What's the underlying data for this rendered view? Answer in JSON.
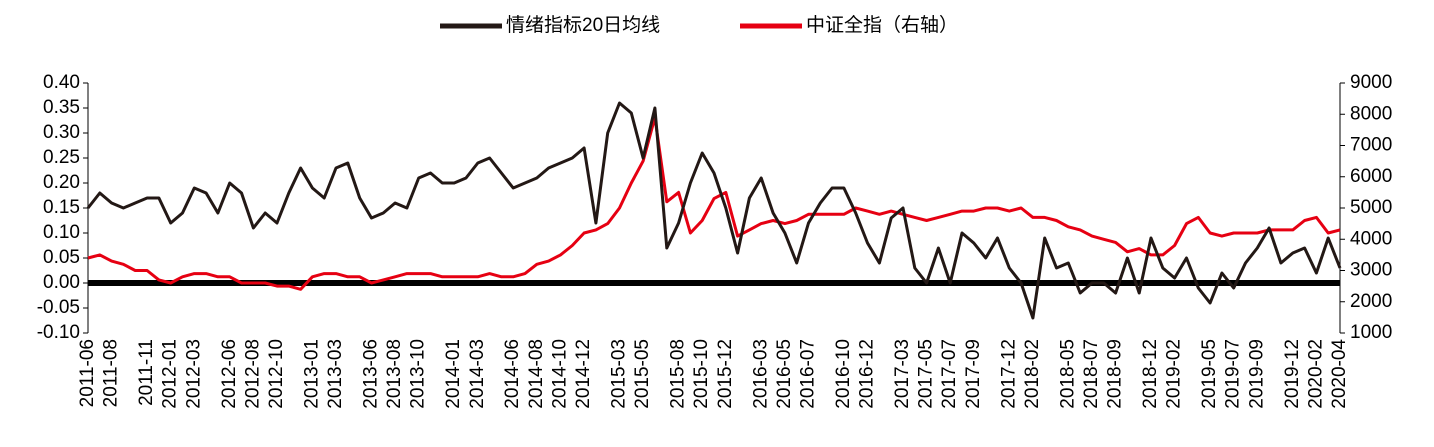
{
  "chart_data": {
    "type": "line",
    "categories": [
      "2011-06",
      null,
      "2011-08",
      null,
      null,
      "2011-11",
      null,
      "2012-01",
      null,
      "2012-03",
      null,
      null,
      "2012-06",
      null,
      "2012-08",
      null,
      "2012-10",
      null,
      null,
      "2013-01",
      null,
      "2013-03",
      null,
      null,
      "2013-06",
      null,
      "2013-08",
      null,
      "2013-10",
      null,
      null,
      "2014-01",
      null,
      "2014-03",
      null,
      null,
      "2014-06",
      null,
      "2014-08",
      null,
      "2014-10",
      null,
      "2014-12",
      null,
      null,
      "2015-03",
      null,
      "2015-05",
      null,
      null,
      "2015-08",
      null,
      "2015-10",
      null,
      "2015-12",
      null,
      null,
      "2016-03",
      null,
      "2016-05",
      null,
      "2016-07",
      null,
      null,
      "2016-10",
      null,
      "2016-12",
      null,
      null,
      "2017-03",
      null,
      "2017-05",
      null,
      "2017-07",
      null,
      "2017-09",
      null,
      null,
      "2017-12",
      null,
      "2018-02",
      null,
      null,
      "2018-05",
      null,
      "2018-07",
      null,
      "2018-09",
      null,
      null,
      "2018-12",
      null,
      "2019-02",
      null,
      null,
      "2019-05",
      null,
      "2019-07",
      null,
      "2019-09",
      null,
      null,
      "2019-12",
      null,
      "2020-02",
      null,
      "2020-04"
    ],
    "series": [
      {
        "name": "情绪指标20日均线",
        "color": "#231815",
        "values": [
          0.15,
          0.18,
          0.16,
          0.15,
          0.16,
          0.17,
          0.17,
          0.12,
          0.14,
          0.19,
          0.18,
          0.14,
          0.2,
          0.18,
          0.11,
          0.14,
          0.12,
          0.18,
          0.23,
          0.19,
          0.17,
          0.23,
          0.24,
          0.17,
          0.13,
          0.14,
          0.16,
          0.15,
          0.21,
          0.22,
          0.2,
          0.2,
          0.21,
          0.24,
          0.25,
          0.22,
          0.19,
          0.2,
          0.21,
          0.23,
          0.24,
          0.25,
          0.27,
          0.12,
          0.3,
          0.36,
          0.34,
          0.25,
          0.35,
          0.07,
          0.12,
          0.2,
          0.26,
          0.22,
          0.15,
          0.06,
          0.17,
          0.21,
          0.14,
          0.1,
          0.04,
          0.12,
          0.16,
          0.19,
          0.19,
          0.14,
          0.08,
          0.04,
          0.13,
          0.15,
          0.03,
          0.0,
          0.07,
          0.0,
          0.1,
          0.08,
          0.05,
          0.09,
          0.03,
          0.0,
          -0.07,
          0.09,
          0.03,
          0.04,
          -0.02,
          0.0,
          0.0,
          -0.02,
          0.05,
          -0.02,
          0.09,
          0.03,
          0.01,
          0.05,
          -0.01,
          -0.04,
          0.02,
          -0.01,
          0.04,
          0.07,
          0.11,
          0.04,
          0.06,
          0.07,
          0.02,
          0.09,
          0.03
        ]
      },
      {
        "name": "中证全指（右轴）",
        "color": "#e60012",
        "axis": "y2",
        "values": [
          3400,
          3500,
          3300,
          3200,
          3000,
          3000,
          2700,
          2600,
          2800,
          2900,
          2900,
          2800,
          2800,
          2600,
          2600,
          2600,
          2500,
          2500,
          2400,
          2800,
          2900,
          2900,
          2800,
          2800,
          2600,
          2700,
          2800,
          2900,
          2900,
          2900,
          2800,
          2800,
          2800,
          2800,
          2900,
          2800,
          2800,
          2900,
          3200,
          3300,
          3500,
          3800,
          4200,
          4300,
          4500,
          5000,
          5800,
          6500,
          7900,
          5200,
          5500,
          4200,
          4600,
          5300,
          5500,
          4100,
          4300,
          4500,
          4600,
          4500,
          4600,
          4800,
          4800,
          4800,
          4800,
          5000,
          4900,
          4800,
          4900,
          4800,
          4700,
          4600,
          4700,
          4800,
          4900,
          4900,
          5000,
          5000,
          4900,
          5000,
          4700,
          4700,
          4600,
          4400,
          4300,
          4100,
          4000,
          3900,
          3600,
          3700,
          3500,
          3500,
          3800,
          4500,
          4700,
          4200,
          4100,
          4200,
          4200,
          4200,
          4300,
          4300,
          4300,
          4600,
          4700,
          4200,
          4300
        ]
      }
    ],
    "ylim": [
      -0.1,
      0.4
    ],
    "yticks": [
      {
        "value": -0.1,
        "label": "-0.10"
      },
      {
        "value": -0.05,
        "label": "-0.05"
      },
      {
        "value": 0,
        "label": "0.00"
      },
      {
        "value": 0.05,
        "label": "0.05"
      },
      {
        "value": 0.1,
        "label": "0.10"
      },
      {
        "value": 0.15,
        "label": "0.15"
      },
      {
        "value": 0.2,
        "label": "0.20"
      },
      {
        "value": 0.25,
        "label": "0.25"
      },
      {
        "value": 0.3,
        "label": "0.30"
      },
      {
        "value": 0.35,
        "label": "0.35"
      },
      {
        "value": 0.4,
        "label": "0.40"
      }
    ],
    "y2lim": [
      1000,
      9000
    ],
    "y2ticks": [
      1000,
      2000,
      3000,
      4000,
      5000,
      6000,
      7000,
      8000,
      9000
    ],
    "legend": "top"
  }
}
